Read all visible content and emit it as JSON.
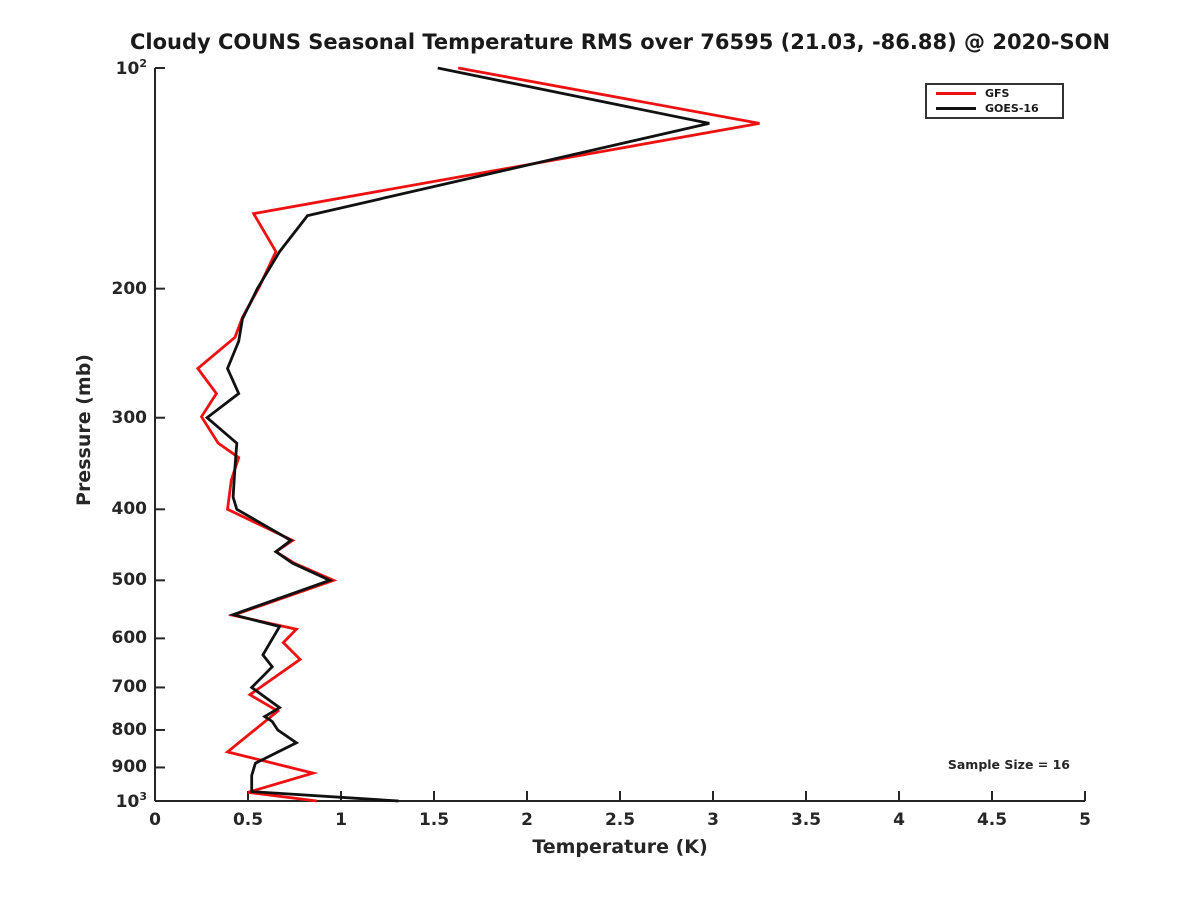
{
  "figure": {
    "background": "#ffffff",
    "axis_color": "#262626"
  },
  "chart_data": {
    "type": "line",
    "title": "Cloudy COUNS Seasonal Temperature RMS over 76595 (21.03, -86.88) @ 2020-SON",
    "xlabel": "Temperature (K)",
    "ylabel": "Pressure (mb)",
    "xlim": [
      0,
      5
    ],
    "xticks": [
      0,
      0.5,
      1,
      1.5,
      2,
      2.5,
      3,
      3.5,
      4,
      4.5,
      5
    ],
    "xtick_labels": [
      "0",
      "0.5",
      "1",
      "1.5",
      "2",
      "2.5",
      "3",
      "3.5",
      "4",
      "4.5",
      "5"
    ],
    "yscale": "log",
    "ylim": [
      100,
      1000
    ],
    "y_axis_direction": "reversed-pressure-top-low",
    "yticks": [
      {
        "value": 100,
        "label": "10^2"
      },
      {
        "value": 200,
        "label": "200"
      },
      {
        "value": 300,
        "label": "300"
      },
      {
        "value": 400,
        "label": "400"
      },
      {
        "value": 500,
        "label": "500"
      },
      {
        "value": 600,
        "label": "600"
      },
      {
        "value": 700,
        "label": "700"
      },
      {
        "value": 800,
        "label": "800"
      },
      {
        "value": 900,
        "label": "900"
      },
      {
        "value": 1000,
        "label": "10^3"
      }
    ],
    "grid": false,
    "annotation": "Sample Size = 16",
    "legend": {
      "position": "top-right",
      "entries": [
        {
          "label": "GFS",
          "color": "#ee1111"
        },
        {
          "label": "GOES-16",
          "color": "#111111"
        }
      ]
    },
    "series": [
      {
        "name": "GFS",
        "color": "#ee1111",
        "points_format": "[pressure_mb, rms_K]",
        "points": [
          [
            100,
            1.63
          ],
          [
            119,
            3.25
          ],
          [
            158,
            0.53
          ],
          [
            178,
            0.65
          ],
          [
            199,
            0.56
          ],
          [
            219,
            0.47
          ],
          [
            233,
            0.43
          ],
          [
            257,
            0.23
          ],
          [
            278,
            0.33
          ],
          [
            299,
            0.25
          ],
          [
            325,
            0.34
          ],
          [
            340,
            0.45
          ],
          [
            365,
            0.41
          ],
          [
            400,
            0.39
          ],
          [
            441,
            0.74
          ],
          [
            457,
            0.65
          ],
          [
            474,
            0.75
          ],
          [
            500,
            0.96
          ],
          [
            558,
            0.42
          ],
          [
            583,
            0.76
          ],
          [
            608,
            0.69
          ],
          [
            641,
            0.78
          ],
          [
            716,
            0.51
          ],
          [
            754,
            0.66
          ],
          [
            857,
            0.39
          ],
          [
            916,
            0.85
          ],
          [
            973,
            0.5
          ],
          [
            1000,
            0.87
          ]
        ]
      },
      {
        "name": "GOES-16",
        "color": "#111111",
        "points_format": "[pressure_mb, rms_K]",
        "points": [
          [
            100,
            1.52
          ],
          [
            119,
            2.98
          ],
          [
            159,
            0.82
          ],
          [
            178,
            0.67
          ],
          [
            200,
            0.55
          ],
          [
            220,
            0.47
          ],
          [
            236,
            0.45
          ],
          [
            257,
            0.39
          ],
          [
            278,
            0.45
          ],
          [
            300,
            0.28
          ],
          [
            325,
            0.44
          ],
          [
            350,
            0.43
          ],
          [
            385,
            0.42
          ],
          [
            400,
            0.44
          ],
          [
            441,
            0.73
          ],
          [
            457,
            0.65
          ],
          [
            474,
            0.74
          ],
          [
            500,
            0.94
          ],
          [
            557,
            0.42
          ],
          [
            578,
            0.67
          ],
          [
            632,
            0.58
          ],
          [
            656,
            0.63
          ],
          [
            700,
            0.52
          ],
          [
            746,
            0.67
          ],
          [
            767,
            0.59
          ],
          [
            779,
            0.63
          ],
          [
            800,
            0.66
          ],
          [
            833,
            0.76
          ],
          [
            888,
            0.54
          ],
          [
            923,
            0.52
          ],
          [
            971,
            0.52
          ],
          [
            1000,
            1.31
          ]
        ]
      }
    ]
  }
}
